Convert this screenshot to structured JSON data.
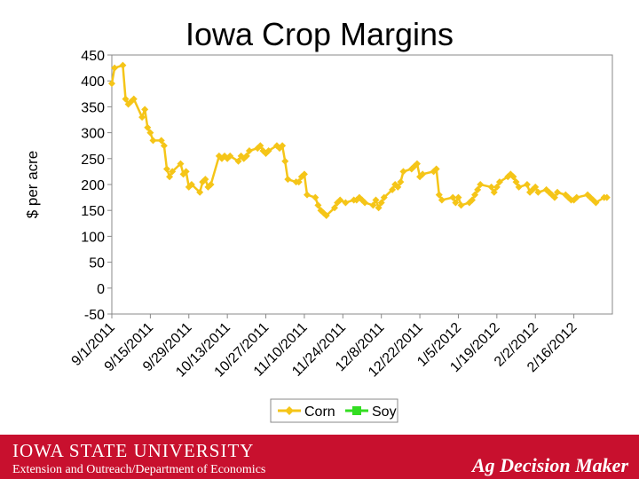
{
  "chart_data": {
    "type": "line",
    "title": "Iowa Crop Margins",
    "ylabel": "$ per acre",
    "xlabel": "",
    "ylim": [
      -50,
      450
    ],
    "yticks": [
      -50,
      0,
      50,
      100,
      150,
      200,
      250,
      300,
      350,
      400,
      450
    ],
    "xlim": [
      "2011-09-01",
      "2012-03-01"
    ],
    "xticks": [
      "9/1/2011",
      "9/15/2011",
      "9/29/2011",
      "10/13/2011",
      "10/27/2011",
      "11/10/2011",
      "11/24/2011",
      "12/8/2011",
      "12/22/2011",
      "1/5/2012",
      "1/19/2012",
      "2/2/2012",
      "2/16/2012"
    ],
    "xtick_dates": [
      "2011-09-01",
      "2011-09-15",
      "2011-09-29",
      "2011-10-13",
      "2011-10-27",
      "2011-11-10",
      "2011-11-24",
      "2011-12-08",
      "2011-12-22",
      "2012-01-05",
      "2012-01-19",
      "2012-02-02",
      "2012-02-16"
    ],
    "grid": "none",
    "legend": "bottom",
    "series": [
      {
        "name": "Corn",
        "color": "#f5c518",
        "marker": "diamond",
        "x": [
          "2011-09-01",
          "2011-09-02",
          "2011-09-05",
          "2011-09-06",
          "2011-09-07",
          "2011-09-08",
          "2011-09-09",
          "2011-09-12",
          "2011-09-13",
          "2011-09-14",
          "2011-09-15",
          "2011-09-16",
          "2011-09-19",
          "2011-09-20",
          "2011-09-21",
          "2011-09-22",
          "2011-09-23",
          "2011-09-26",
          "2011-09-27",
          "2011-09-28",
          "2011-09-29",
          "2011-09-30",
          "2011-10-03",
          "2011-10-04",
          "2011-10-05",
          "2011-10-06",
          "2011-10-07",
          "2011-10-10",
          "2011-10-11",
          "2011-10-12",
          "2011-10-13",
          "2011-10-14",
          "2011-10-17",
          "2011-10-18",
          "2011-10-19",
          "2011-10-20",
          "2011-10-21",
          "2011-10-24",
          "2011-10-25",
          "2011-10-26",
          "2011-10-27",
          "2011-10-28",
          "2011-10-31",
          "2011-11-01",
          "2011-11-02",
          "2011-11-03",
          "2011-11-04",
          "2011-11-07",
          "2011-11-08",
          "2011-11-09",
          "2011-11-10",
          "2011-11-11",
          "2011-11-14",
          "2011-11-15",
          "2011-11-16",
          "2011-11-17",
          "2011-11-18",
          "2011-11-21",
          "2011-11-22",
          "2011-11-23",
          "2011-11-25",
          "2011-11-28",
          "2011-11-29",
          "2011-11-30",
          "2011-12-01",
          "2011-12-02",
          "2011-12-05",
          "2011-12-06",
          "2011-12-07",
          "2011-12-08",
          "2011-12-09",
          "2011-12-12",
          "2011-12-13",
          "2011-12-14",
          "2011-12-15",
          "2011-12-16",
          "2011-12-19",
          "2011-12-20",
          "2011-12-21",
          "2011-12-22",
          "2011-12-23",
          "2011-12-27",
          "2011-12-28",
          "2011-12-29",
          "2011-12-30",
          "2012-01-03",
          "2012-01-04",
          "2012-01-05",
          "2012-01-06",
          "2012-01-09",
          "2012-01-10",
          "2012-01-11",
          "2012-01-12",
          "2012-01-13",
          "2012-01-17",
          "2012-01-18",
          "2012-01-19",
          "2012-01-20",
          "2012-01-23",
          "2012-01-24",
          "2012-01-25",
          "2012-01-26",
          "2012-01-27",
          "2012-01-30",
          "2012-01-31",
          "2012-02-01",
          "2012-02-02",
          "2012-02-03",
          "2012-02-06",
          "2012-02-07",
          "2012-02-08",
          "2012-02-09",
          "2012-02-10",
          "2012-02-13",
          "2012-02-14",
          "2012-02-15",
          "2012-02-16",
          "2012-02-17",
          "2012-02-21",
          "2012-02-22",
          "2012-02-23",
          "2012-02-24",
          "2012-02-27",
          "2012-02-28"
        ],
        "values": [
          395,
          425,
          430,
          365,
          355,
          360,
          365,
          330,
          345,
          310,
          300,
          285,
          285,
          275,
          230,
          215,
          225,
          240,
          220,
          225,
          195,
          200,
          185,
          205,
          210,
          195,
          200,
          255,
          250,
          255,
          250,
          255,
          245,
          255,
          250,
          255,
          265,
          270,
          275,
          265,
          260,
          265,
          275,
          270,
          275,
          245,
          210,
          205,
          205,
          215,
          220,
          180,
          175,
          160,
          150,
          145,
          140,
          155,
          165,
          170,
          165,
          170,
          170,
          175,
          170,
          165,
          160,
          170,
          155,
          165,
          175,
          190,
          200,
          195,
          205,
          225,
          230,
          235,
          240,
          215,
          220,
          225,
          230,
          180,
          170,
          175,
          165,
          175,
          160,
          165,
          170,
          180,
          190,
          200,
          195,
          185,
          195,
          205,
          215,
          220,
          215,
          205,
          195,
          200,
          185,
          190,
          195,
          185,
          190,
          185,
          180,
          175,
          185,
          180,
          175,
          170,
          170,
          175,
          180,
          175,
          170,
          165,
          175,
          175
        ],
        "note": ""
      },
      {
        "name": "Soy",
        "color": "#33dd22",
        "marker": "square",
        "x": [],
        "values": []
      }
    ]
  },
  "footer": {
    "university": "IOWA STATE UNIVERSITY",
    "department": "Extension and Outreach/Department of Economics",
    "brand": "Ag Decision Maker"
  }
}
